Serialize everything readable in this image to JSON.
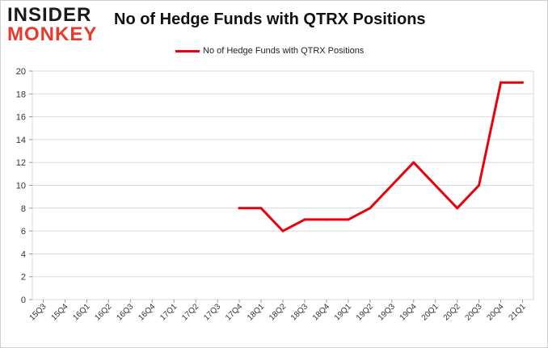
{
  "logo": {
    "line1": "INSIDER",
    "line2": "MONKEY"
  },
  "chart_data": {
    "type": "line",
    "title": "No of Hedge Funds with QTRX Positions",
    "xlabel": "",
    "ylabel": "",
    "categories": [
      "15Q3",
      "15Q4",
      "16Q1",
      "16Q2",
      "16Q3",
      "16Q4",
      "17Q1",
      "17Q2",
      "17Q3",
      "17Q4",
      "18Q1",
      "18Q2",
      "18Q3",
      "18Q4",
      "19Q1",
      "19Q2",
      "19Q3",
      "19Q4",
      "20Q1",
      "20Q2",
      "20Q3",
      "20Q4",
      "21Q1"
    ],
    "series": [
      {
        "name": "No of Hedge Funds with QTRX Positions",
        "values": [
          null,
          null,
          null,
          null,
          null,
          null,
          null,
          null,
          null,
          8,
          8,
          6,
          7,
          7,
          7,
          8,
          10,
          12,
          10,
          8,
          10,
          19,
          19
        ]
      }
    ],
    "ylim": [
      0,
      20
    ],
    "yticks": [
      0,
      2,
      4,
      6,
      8,
      10,
      12,
      14,
      16,
      18,
      20
    ],
    "grid": true,
    "legend_position": "top-center",
    "line_color": "#e8000b"
  }
}
